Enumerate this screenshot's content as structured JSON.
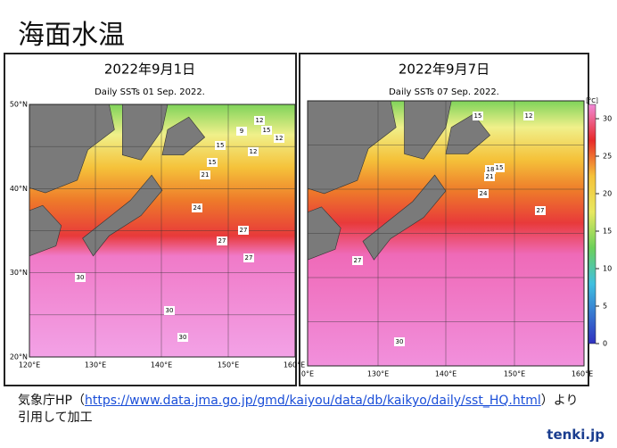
{
  "title": "海面水温",
  "panels": [
    {
      "date": "2022年9月1日",
      "caption": "Daily SSTs 01 Sep. 2022.",
      "lat_labels": [
        "50°N",
        "40°N",
        "30°N",
        "20°N"
      ],
      "lon_labels": [
        "120°E",
        "130°E",
        "140°E",
        "150°E",
        "160°E"
      ],
      "contour_labels": [
        12,
        9,
        15,
        12,
        15,
        15,
        12,
        21,
        24,
        27,
        27,
        27,
        30,
        30,
        30
      ]
    },
    {
      "date": "2022年9月7日",
      "caption": "Daily SSTs 07 Sep. 2022.",
      "lon_labels": [
        "0°E",
        "130°E",
        "140°E",
        "150°E",
        "160°E"
      ],
      "contour_labels": [
        15,
        12,
        18,
        15,
        21,
        24,
        27,
        27,
        30
      ]
    }
  ],
  "colorbar": {
    "unit": "[°C]",
    "ticks": [
      30,
      25,
      20,
      15,
      10,
      5,
      0
    ]
  },
  "footer": {
    "prefix": "気象庁HP（",
    "link": "https://www.data.jma.go.jp/gmd/kaiyou/data/db/kaikyo/daily/sst_HQ.html",
    "suffix": "）より",
    "line2": "引用して加工"
  },
  "logo": "tenki.jp"
}
